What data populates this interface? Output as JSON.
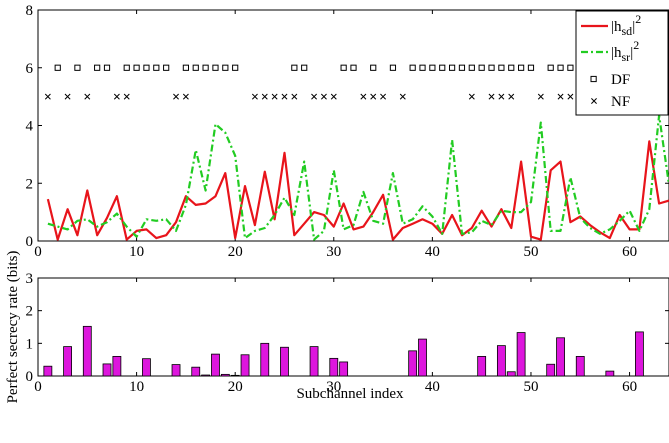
{
  "chart_data": [
    {
      "type": "line",
      "xlim": [
        0,
        64
      ],
      "ylim": [
        0,
        8
      ],
      "xticks": [
        "0",
        "10",
        "20",
        "30",
        "40",
        "50",
        "60"
      ],
      "yticks": [
        "0",
        "2",
        "4",
        "6",
        "8"
      ],
      "legend": {
        "placement": "top-right"
      },
      "x": [
        1,
        2,
        3,
        4,
        5,
        6,
        7,
        8,
        9,
        10,
        11,
        12,
        13,
        14,
        15,
        16,
        17,
        18,
        19,
        20,
        21,
        22,
        23,
        24,
        25,
        26,
        27,
        28,
        29,
        30,
        31,
        32,
        33,
        34,
        35,
        36,
        37,
        38,
        39,
        40,
        41,
        42,
        43,
        44,
        45,
        46,
        47,
        48,
        49,
        50,
        51,
        52,
        53,
        54,
        55,
        56,
        57,
        58,
        59,
        60,
        61,
        62,
        63,
        64
      ],
      "series": [
        {
          "name": "|h_sd|^2",
          "legend_main": "|h",
          "legend_sub": "sd",
          "legend_sup": "2",
          "color": "#e8141b",
          "style": "solid",
          "values": [
            1.45,
            0.05,
            1.1,
            0.2,
            1.75,
            0.2,
            0.8,
            1.55,
            0.05,
            0.35,
            0.4,
            0.1,
            0.2,
            0.65,
            1.55,
            1.25,
            1.3,
            1.55,
            2.35,
            0.1,
            1.9,
            0.55,
            2.4,
            0.75,
            3.05,
            0.2,
            0.6,
            1.0,
            0.9,
            0.5,
            1.3,
            0.4,
            0.5,
            1.0,
            1.6,
            0.05,
            0.45,
            0.6,
            0.75,
            0.6,
            0.25,
            0.9,
            0.2,
            0.45,
            1.05,
            0.5,
            1.1,
            0.45,
            2.75,
            0.15,
            0.05,
            2.45,
            2.75,
            0.65,
            0.85,
            0.55,
            0.3,
            0.1,
            0.9,
            0.4,
            0.4,
            3.45,
            1.3,
            1.4
          ]
        },
        {
          "name": "|h_sr|^2",
          "legend_main": "|h",
          "legend_sub": "sr",
          "legend_sup": "2",
          "color": "#22cc22",
          "style": "dash-dot",
          "values": [
            0.6,
            0.5,
            0.4,
            0.7,
            0.75,
            0.5,
            0.65,
            0.95,
            0.5,
            0.15,
            0.75,
            0.7,
            0.75,
            0.35,
            1.25,
            3.15,
            1.75,
            4.05,
            3.75,
            2.95,
            0.1,
            0.35,
            0.45,
            0.9,
            1.5,
            0.9,
            2.75,
            0.05,
            0.35,
            2.45,
            0.4,
            0.55,
            1.7,
            0.7,
            0.6,
            2.35,
            0.6,
            0.75,
            1.2,
            0.85,
            0.25,
            3.5,
            0.25,
            0.3,
            0.7,
            0.55,
            1.05,
            1.0,
            1.0,
            1.35,
            4.1,
            0.35,
            0.35,
            2.2,
            0.8,
            0.45,
            0.25,
            0.4,
            0.7,
            1.05,
            0.35,
            1.1,
            4.35,
            1.95
          ]
        }
      ],
      "markers": {
        "DF": {
          "label": "DF",
          "y": 6,
          "x": [
            2,
            4,
            6,
            7,
            9,
            10,
            11,
            12,
            13,
            15,
            16,
            17,
            18,
            19,
            20,
            26,
            27,
            31,
            32,
            34,
            36,
            38,
            39,
            40,
            41,
            42,
            43,
            44,
            45,
            46,
            47,
            48,
            49,
            50,
            52,
            53,
            54,
            55,
            56,
            57,
            59,
            61,
            62,
            63
          ]
        },
        "NF": {
          "label": "NF",
          "y": 5,
          "x": [
            1,
            3,
            5,
            8,
            9,
            14,
            15,
            22,
            23,
            24,
            25,
            26,
            28,
            29,
            30,
            33,
            34,
            35,
            37,
            44,
            46,
            47,
            48,
            51,
            53,
            54,
            56,
            58,
            60
          ]
        }
      }
    },
    {
      "type": "bar",
      "xlabel": "Subchannel index",
      "ylabel": "Perfect secrecy rate (bits)",
      "xlim": [
        0,
        64
      ],
      "ylim": [
        0,
        3
      ],
      "xticks": [
        "0",
        "10",
        "20",
        "30",
        "40",
        "50",
        "60"
      ],
      "yticks": [
        "0",
        "1",
        "2",
        "3"
      ],
      "color": "#dd16dd",
      "x": [
        1,
        3,
        5,
        7,
        8,
        11,
        14,
        16,
        17,
        18,
        19,
        20,
        21,
        23,
        25,
        28,
        30,
        31,
        38,
        39,
        45,
        47,
        48,
        49,
        52,
        53,
        55,
        58,
        61
      ],
      "values": [
        0.3,
        0.9,
        1.52,
        0.37,
        0.6,
        0.53,
        0.35,
        0.27,
        0.03,
        0.67,
        0.05,
        0.02,
        0.65,
        1.0,
        0.88,
        0.9,
        0.54,
        0.43,
        0.77,
        1.13,
        0.6,
        0.93,
        0.13,
        1.33,
        0.36,
        1.17,
        0.6,
        0.15,
        1.35
      ]
    }
  ]
}
